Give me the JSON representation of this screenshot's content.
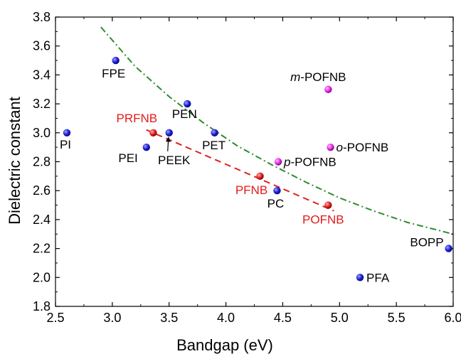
{
  "chart_data": {
    "type": "scatter",
    "title": "",
    "xlabel": "Bandgap (eV)",
    "ylabel": "Dielectric constant",
    "xlim": [
      2.5,
      6.0
    ],
    "ylim": [
      1.8,
      3.8
    ],
    "xticks": [
      "2.5",
      "3.0",
      "3.5",
      "4.0",
      "4.5",
      "5.0",
      "5.5",
      "6.0"
    ],
    "yticks": [
      "1.8",
      "2.0",
      "2.2",
      "2.4",
      "2.6",
      "2.8",
      "3.0",
      "3.2",
      "3.4",
      "3.6",
      "3.8"
    ],
    "grid": false,
    "colors": {
      "blue": "#1f1fd6",
      "red": "#e02020",
      "magenta": "#e830e8",
      "green_curve": "#2e8b2e",
      "red_line": "#e02020",
      "label_red": "#e41a1a",
      "label_black": "#000000"
    },
    "points": [
      {
        "label": "PI",
        "italic_prefix": "",
        "x": 2.6,
        "y": 3.0,
        "group": "blue"
      },
      {
        "label": "FPE",
        "italic_prefix": "",
        "x": 3.03,
        "y": 3.5,
        "group": "blue"
      },
      {
        "label": "PEI",
        "italic_prefix": "",
        "x": 3.3,
        "y": 2.9,
        "group": "blue"
      },
      {
        "label": "PEEK",
        "italic_prefix": "",
        "x": 3.5,
        "y": 3.0,
        "group": "blue"
      },
      {
        "label": "PEN",
        "italic_prefix": "",
        "x": 3.66,
        "y": 3.2,
        "group": "blue"
      },
      {
        "label": "PET",
        "italic_prefix": "",
        "x": 3.9,
        "y": 3.0,
        "group": "blue"
      },
      {
        "label": "PC",
        "italic_prefix": "",
        "x": 4.45,
        "y": 2.6,
        "group": "blue"
      },
      {
        "label": "PFA",
        "italic_prefix": "",
        "x": 5.18,
        "y": 2.0,
        "group": "blue"
      },
      {
        "label": "BOPP",
        "italic_prefix": "",
        "x": 5.96,
        "y": 2.2,
        "group": "blue"
      },
      {
        "label": "PRFNB",
        "italic_prefix": "",
        "x": 3.36,
        "y": 3.0,
        "group": "red"
      },
      {
        "label": "PFNB",
        "italic_prefix": "",
        "x": 4.3,
        "y": 2.7,
        "group": "red"
      },
      {
        "label": "POFNB",
        "italic_prefix": "",
        "x": 4.9,
        "y": 2.5,
        "group": "red"
      },
      {
        "label": "-POFNB",
        "italic_prefix": "m",
        "x": 4.9,
        "y": 3.3,
        "group": "magenta"
      },
      {
        "label": "-POFNB",
        "italic_prefix": "o",
        "x": 4.92,
        "y": 2.9,
        "group": "magenta"
      },
      {
        "label": "-POFNB",
        "italic_prefix": "p",
        "x": 4.46,
        "y": 2.8,
        "group": "magenta"
      }
    ],
    "trend_curve": {
      "style": "dash-dot",
      "color": "green_curve",
      "x": [
        2.9,
        3.2,
        3.5,
        3.8,
        4.1,
        4.4,
        4.7,
        5.0,
        5.3,
        5.6,
        6.0
      ],
      "y": [
        3.73,
        3.46,
        3.25,
        3.07,
        2.91,
        2.78,
        2.66,
        2.55,
        2.46,
        2.38,
        2.3
      ]
    },
    "trend_line": {
      "style": "dashed",
      "color": "red_line",
      "x": [
        3.3,
        4.95
      ],
      "y": [
        3.02,
        2.46
      ]
    }
  }
}
